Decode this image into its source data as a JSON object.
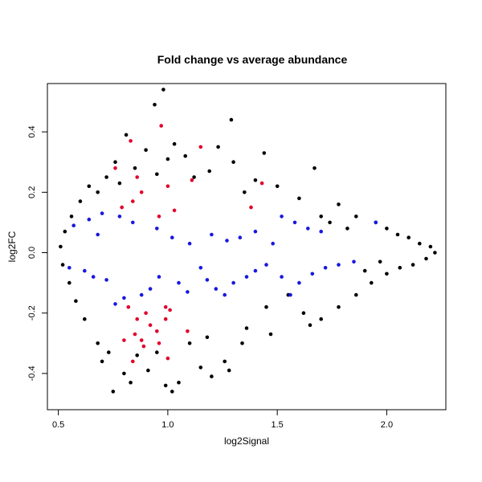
{
  "chart_data": {
    "type": "scatter",
    "title": "Fold change vs average abundance",
    "xlabel": "log2Signal",
    "ylabel": "log2FC",
    "xlim": [
      0.45,
      2.27
    ],
    "ylim": [
      -0.52,
      0.56
    ],
    "xticks": [
      0.5,
      1.0,
      1.5,
      2.0
    ],
    "xtick_labels": [
      "0.5",
      "1.0",
      "1.5",
      "2.0"
    ],
    "yticks": [
      -0.4,
      -0.2,
      0.0,
      0.2,
      0.4
    ],
    "ytick_labels": [
      "-0.4",
      "-0.2",
      "0.0",
      "0.2",
      "0.4"
    ],
    "grid": false,
    "legend": "none",
    "series": [
      {
        "color": "#000000",
        "points": [
          [
            0.98,
            0.54
          ],
          [
            0.94,
            0.49
          ],
          [
            1.29,
            0.44
          ],
          [
            1.03,
            0.36
          ],
          [
            1.23,
            0.35
          ],
          [
            1.44,
            0.33
          ],
          [
            0.81,
            0.39
          ],
          [
            1.08,
            0.32
          ],
          [
            1.3,
            0.3
          ],
          [
            1.67,
            0.28
          ],
          [
            0.76,
            0.3
          ],
          [
            0.9,
            0.34
          ],
          [
            1.19,
            0.27
          ],
          [
            1.0,
            0.31
          ],
          [
            0.85,
            0.28
          ],
          [
            1.4,
            0.24
          ],
          [
            0.95,
            0.26
          ],
          [
            1.12,
            0.25
          ],
          [
            1.5,
            0.22
          ],
          [
            1.78,
            0.16
          ],
          [
            1.86,
            0.12
          ],
          [
            1.95,
            0.1
          ],
          [
            2.0,
            0.08
          ],
          [
            2.05,
            0.06
          ],
          [
            2.1,
            0.05
          ],
          [
            2.15,
            0.03
          ],
          [
            2.2,
            0.02
          ],
          [
            2.22,
            0.0
          ],
          [
            2.18,
            -0.02
          ],
          [
            2.12,
            -0.04
          ],
          [
            2.06,
            -0.05
          ],
          [
            2.0,
            -0.07
          ],
          [
            1.93,
            -0.1
          ],
          [
            1.86,
            -0.14
          ],
          [
            1.78,
            -0.18
          ],
          [
            1.7,
            -0.22
          ],
          [
            1.62,
            -0.2
          ],
          [
            1.47,
            -0.27
          ],
          [
            1.36,
            -0.25
          ],
          [
            1.26,
            -0.36
          ],
          [
            1.2,
            -0.41
          ],
          [
            1.15,
            -0.38
          ],
          [
            1.28,
            -0.39
          ],
          [
            1.05,
            -0.43
          ],
          [
            1.02,
            -0.46
          ],
          [
            0.99,
            -0.44
          ],
          [
            0.75,
            -0.46
          ],
          [
            0.83,
            -0.43
          ],
          [
            0.91,
            -0.39
          ],
          [
            0.7,
            -0.36
          ],
          [
            0.73,
            -0.33
          ],
          [
            0.86,
            -0.34
          ],
          [
            0.95,
            -0.33
          ],
          [
            0.8,
            -0.4
          ],
          [
            0.68,
            -0.3
          ],
          [
            0.62,
            -0.22
          ],
          [
            0.58,
            -0.16
          ],
          [
            0.55,
            -0.1
          ],
          [
            0.52,
            -0.04
          ],
          [
            0.51,
            0.02
          ],
          [
            0.53,
            0.07
          ],
          [
            0.56,
            0.12
          ],
          [
            0.6,
            0.17
          ],
          [
            0.64,
            0.22
          ],
          [
            0.68,
            0.2
          ],
          [
            0.72,
            0.25
          ],
          [
            0.78,
            0.23
          ],
          [
            1.45,
            -0.18
          ],
          [
            1.55,
            -0.14
          ],
          [
            1.65,
            -0.24
          ],
          [
            1.34,
            -0.3
          ],
          [
            1.1,
            -0.3
          ],
          [
            1.18,
            -0.28
          ],
          [
            1.6,
            0.18
          ],
          [
            1.35,
            0.2
          ],
          [
            1.7,
            0.12
          ],
          [
            1.74,
            0.1
          ],
          [
            1.82,
            0.08
          ],
          [
            1.9,
            -0.06
          ],
          [
            1.97,
            -0.03
          ]
        ]
      },
      {
        "color": "#e2002a",
        "points": [
          [
            0.97,
            0.42
          ],
          [
            0.83,
            0.37
          ],
          [
            1.15,
            0.35
          ],
          [
            0.76,
            0.28
          ],
          [
            0.86,
            0.25
          ],
          [
            1.43,
            0.23
          ],
          [
            1.0,
            0.22
          ],
          [
            1.11,
            0.24
          ],
          [
            0.88,
            0.2
          ],
          [
            0.84,
            0.17
          ],
          [
            0.79,
            0.15
          ],
          [
            1.03,
            0.14
          ],
          [
            0.96,
            0.12
          ],
          [
            1.38,
            0.15
          ],
          [
            0.9,
            -0.2
          ],
          [
            0.82,
            -0.18
          ],
          [
            0.86,
            -0.22
          ],
          [
            0.92,
            -0.24
          ],
          [
            0.95,
            -0.26
          ],
          [
            0.99,
            -0.22
          ],
          [
            1.01,
            -0.19
          ],
          [
            1.09,
            -0.26
          ],
          [
            0.88,
            -0.29
          ],
          [
            0.8,
            -0.29
          ],
          [
            0.84,
            -0.36
          ],
          [
            1.0,
            -0.35
          ],
          [
            0.96,
            -0.3
          ],
          [
            0.99,
            -0.18
          ],
          [
            0.89,
            -0.31
          ],
          [
            0.85,
            -0.27
          ]
        ]
      },
      {
        "color": "#1818e0",
        "points": [
          [
            0.64,
            0.11
          ],
          [
            0.57,
            0.09
          ],
          [
            0.7,
            0.13
          ],
          [
            0.62,
            -0.06
          ],
          [
            0.55,
            -0.05
          ],
          [
            0.72,
            -0.09
          ],
          [
            0.66,
            -0.08
          ],
          [
            0.76,
            -0.17
          ],
          [
            0.8,
            -0.15
          ],
          [
            0.88,
            -0.14
          ],
          [
            0.92,
            -0.12
          ],
          [
            1.05,
            -0.1
          ],
          [
            1.09,
            -0.13
          ],
          [
            1.18,
            -0.09
          ],
          [
            1.22,
            -0.12
          ],
          [
            1.26,
            -0.14
          ],
          [
            1.3,
            -0.1
          ],
          [
            1.36,
            -0.08
          ],
          [
            1.4,
            -0.06
          ],
          [
            1.45,
            -0.04
          ],
          [
            1.52,
            -0.08
          ],
          [
            1.56,
            -0.14
          ],
          [
            1.6,
            -0.1
          ],
          [
            1.66,
            -0.07
          ],
          [
            1.72,
            -0.05
          ],
          [
            1.78,
            -0.04
          ],
          [
            1.85,
            -0.03
          ],
          [
            1.52,
            0.12
          ],
          [
            1.58,
            0.1
          ],
          [
            1.64,
            0.08
          ],
          [
            1.7,
            0.07
          ],
          [
            1.4,
            0.07
          ],
          [
            1.33,
            0.05
          ],
          [
            1.27,
            0.04
          ],
          [
            1.2,
            0.06
          ],
          [
            1.1,
            0.03
          ],
          [
            1.02,
            0.05
          ],
          [
            0.95,
            0.08
          ],
          [
            0.84,
            0.1
          ],
          [
            0.78,
            0.12
          ],
          [
            1.95,
            0.1
          ],
          [
            1.15,
            -0.05
          ],
          [
            0.96,
            -0.08
          ],
          [
            0.68,
            0.06
          ],
          [
            1.48,
            0.03
          ]
        ]
      }
    ]
  }
}
